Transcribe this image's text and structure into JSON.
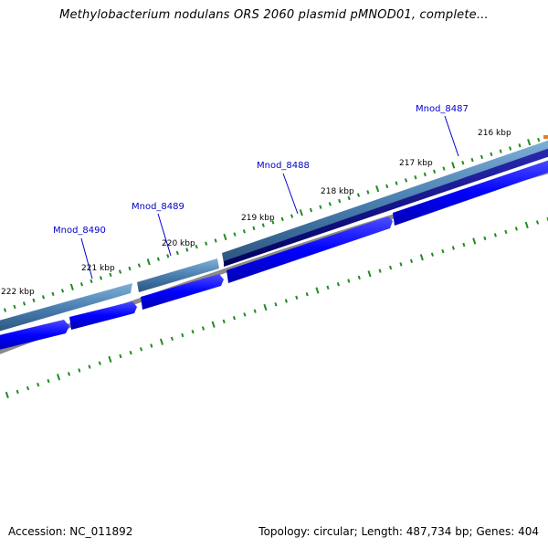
{
  "title": "Methylobacterium nodulans ORS 2060 plasmid pMNOD01, complete...",
  "footer": {
    "accession": "Accession: NC_011892",
    "info": "Topology: circular; Length: 487,734 bp; Genes: 404"
  },
  "ticks": [
    {
      "label": "216 kbp"
    },
    {
      "label": "217 kbp"
    },
    {
      "label": "218 kbp"
    },
    {
      "label": "219 kbp"
    },
    {
      "label": "220 kbp"
    },
    {
      "label": "221 kbp"
    },
    {
      "label": "222 kbp"
    }
  ],
  "genes": [
    {
      "label": "Mnod_8487"
    },
    {
      "label": "Mnod_8488"
    },
    {
      "label": "Mnod_8489"
    },
    {
      "label": "Mnod_8490"
    }
  ],
  "colors": {
    "outer_track": "#4a7fb0",
    "dark_track": "#000080",
    "cds_forward": "#0000ff",
    "backbone": "#808080",
    "ticks": "#228b22",
    "gene_label": "#0000cc"
  }
}
